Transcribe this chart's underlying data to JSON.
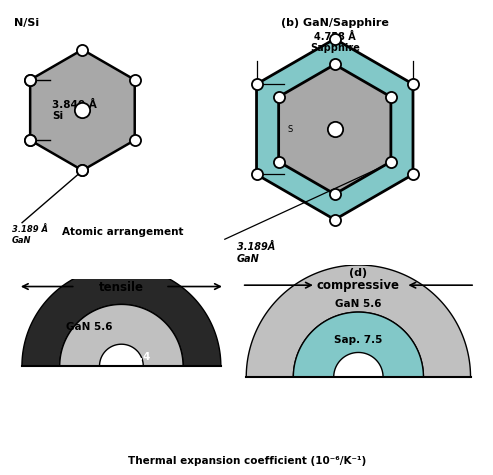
{
  "title_a": "N/Si",
  "title_b": "(b) GaN/Sapphire",
  "title_d": "(d)",
  "label_atomic": "Atomic arrangement",
  "label_thermal": "Thermal expansion coefficient (10⁻⁶/K⁻¹)",
  "si_dim_label": "3.840 Å\nSi",
  "gan_dim_label": "3.189Å\nGaN",
  "sap_dim_label": "4.758 Å\nSapphire",
  "si_dim_partial": "3.189 Å\n GaN",
  "tensile_label": "tensile",
  "compressive_label": "compressive",
  "gan_coeff": "GaN 5.6",
  "si_coeff": "Si 2.4",
  "sap_coeff": "Sap. 7.5",
  "gray": "#a8a8a8",
  "teal": "#82c8c8",
  "dark": "#282828",
  "white": "#ffffff",
  "black": "#000000",
  "light_gray": "#c0c0c0"
}
